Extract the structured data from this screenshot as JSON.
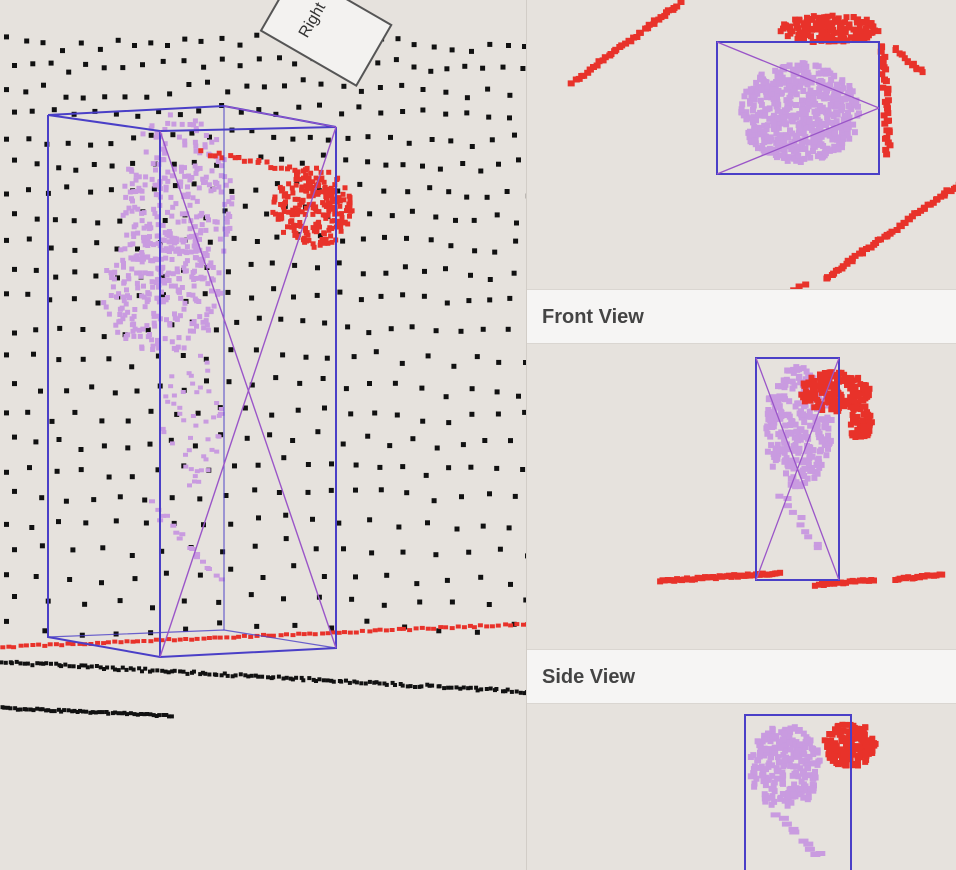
{
  "labels": {
    "front_view": "Front View",
    "side_view": "Side View",
    "camera_label": "Right"
  },
  "colors": {
    "background": "#e6e2dd",
    "box_stroke": "#4a3fc7",
    "box_diagonal": "#9a55c8",
    "object_points": "#c99be0",
    "highlight_points": "#e8322a",
    "ground_points": "#111111",
    "header_bg": "#f6f5f4",
    "header_text": "#444444"
  },
  "icons": {
    "camera_marker": "camera-frustum-icon"
  }
}
